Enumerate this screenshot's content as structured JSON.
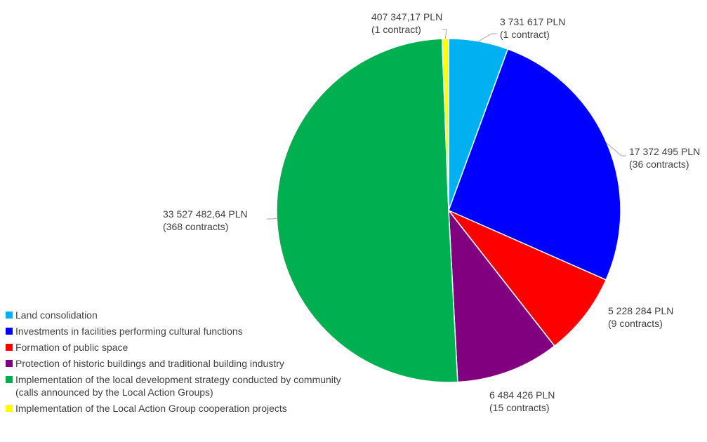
{
  "chart_data": {
    "type": "pie",
    "title": "",
    "slices": [
      {
        "label": "Land consolidation",
        "value": 3731617,
        "value_text": "3 731 617 PLN",
        "count_text": "(1 contract)",
        "color": "#00b0f0"
      },
      {
        "label": "Investments in facilities performing cultural functions",
        "value": 17372495,
        "value_text": "17 372 495 PLN",
        "count_text": "(36 contracts)",
        "color": "#0000ff"
      },
      {
        "label": "Formation of public space",
        "value": 5228284,
        "value_text": "5 228 284 PLN",
        "count_text": "(9 contracts)",
        "color": "#ff0000"
      },
      {
        "label": "Protection of historic buildings and traditional building industry",
        "value": 6484426,
        "value_text": "6 484 426 PLN",
        "count_text": "(15 contracts)",
        "color": "#800080"
      },
      {
        "label": "Implementation of the local development strategy conducted by community\n(calls announced by the Local Action Groups)",
        "value": 33527482.64,
        "value_text": "33 527 482,64 PLN",
        "count_text": "(368 contracts)",
        "color": "#00b050"
      },
      {
        "label": "Implementation of the Local Action Group cooperation projects",
        "value": 407347.17,
        "value_text": "407 347,17 PLN",
        "count_text": "(1 contract)",
        "color": "#ffff00"
      }
    ],
    "legend_position": "bottom-left"
  }
}
